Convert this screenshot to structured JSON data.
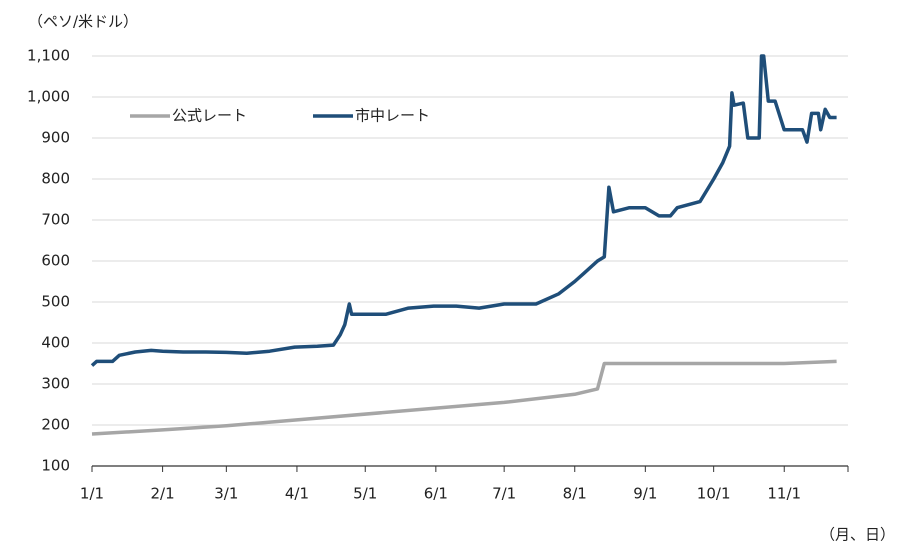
{
  "chart_data": {
    "type": "line",
    "y_label": "（ペソ/米ドル）",
    "x_label": "（月、日）",
    "x": [
      "1/1",
      "1/3",
      "1/10",
      "1/13",
      "1/20",
      "1/27",
      "2/1",
      "2/10",
      "2/20",
      "3/1",
      "3/10",
      "3/20",
      "3/31",
      "4/10",
      "4/17",
      "4/20",
      "4/22",
      "4/24",
      "4/25",
      "5/10",
      "5/20",
      "5/31",
      "6/10",
      "6/20",
      "7/1",
      "7/15",
      "7/25",
      "8/1",
      "8/5",
      "8/11",
      "8/14",
      "8/16",
      "8/18",
      "8/25",
      "9/1",
      "9/7",
      "9/12",
      "9/15",
      "9/25",
      "10/1",
      "10/5",
      "10/8",
      "10/9",
      "10/10",
      "10/14",
      "10/16",
      "10/21",
      "10/22",
      "10/23",
      "10/25",
      "10/28",
      "11/1",
      "11/5",
      "11/9",
      "11/11",
      "11/13",
      "11/16",
      "11/17",
      "11/19",
      "11/21",
      "11/24"
    ],
    "series": [
      {
        "name": "公式レート",
        "color": "#a6a6a6",
        "values": [
          178,
          null,
          null,
          null,
          null,
          null,
          188,
          null,
          null,
          198,
          null,
          null,
          null,
          null,
          null,
          null,
          null,
          null,
          null,
          null,
          null,
          null,
          null,
          null,
          255,
          null,
          null,
          275,
          null,
          288,
          350,
          350,
          null,
          null,
          350,
          null,
          null,
          null,
          null,
          350,
          null,
          null,
          null,
          null,
          null,
          null,
          null,
          null,
          null,
          null,
          null,
          350,
          null,
          null,
          null,
          null,
          null,
          null,
          null,
          null,
          355
        ]
      },
      {
        "name": "市中レート",
        "color": "#1f4e79",
        "values": [
          345,
          355,
          355,
          370,
          378,
          382,
          380,
          378,
          378,
          377,
          375,
          380,
          390,
          392,
          395,
          420,
          445,
          495,
          470,
          470,
          485,
          490,
          490,
          485,
          495,
          495,
          520,
          550,
          570,
          600,
          610,
          780,
          720,
          730,
          730,
          710,
          710,
          730,
          745,
          800,
          840,
          880,
          1010,
          980,
          985,
          900,
          900,
          1100,
          1100,
          990,
          990,
          920,
          920,
          920,
          890,
          960,
          960,
          920,
          970,
          950,
          950
        ]
      }
    ],
    "xlim": [
      "1/1",
      "11/29"
    ],
    "xticks": [
      "1/1",
      "2/1",
      "3/1",
      "4/1",
      "5/1",
      "6/1",
      "7/1",
      "8/1",
      "9/1",
      "10/1",
      "11/1"
    ],
    "ylim": [
      100,
      1100
    ],
    "yticks": [
      100,
      200,
      300,
      400,
      500,
      600,
      700,
      800,
      900,
      {
        "value": 1000,
        "label": "1,000"
      },
      {
        "value": 1100,
        "label": "1,100"
      }
    ],
    "grid": true
  }
}
